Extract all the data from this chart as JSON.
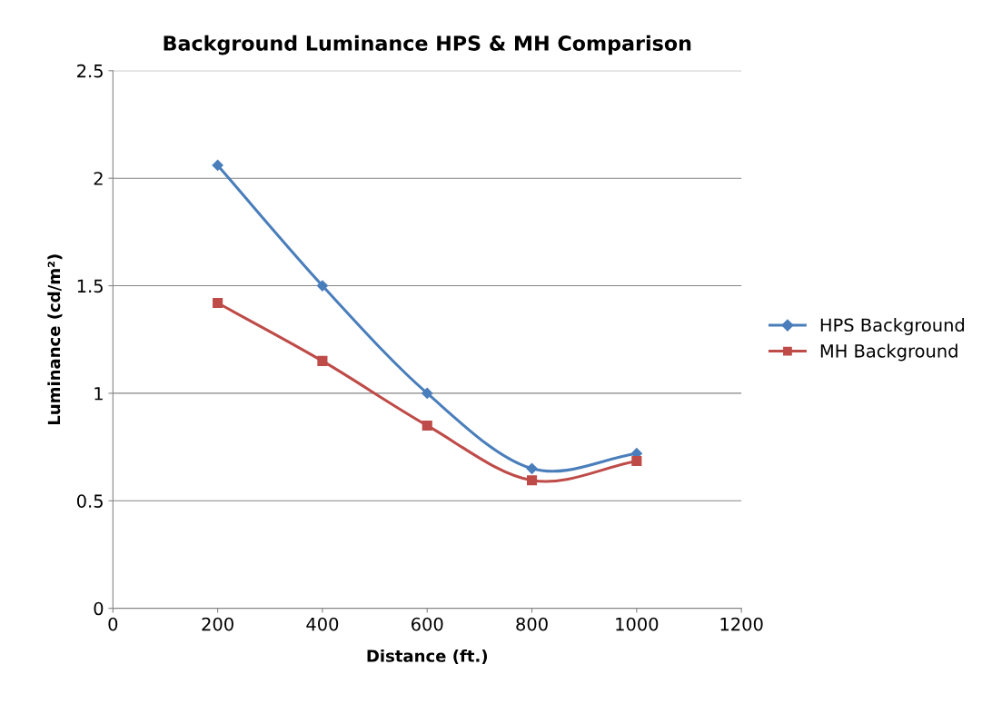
{
  "chart_data": {
    "type": "line",
    "title": "Background Luminance HPS & MH Comparison",
    "xlabel": "Distance (ft.)",
    "ylabel": "Luminance (cd/m²)",
    "x": [
      200,
      400,
      600,
      800,
      1000
    ],
    "series": [
      {
        "name": "HPS Background",
        "color": "#4a7ebb",
        "marker": "diamond",
        "values": [
          2.06,
          1.5,
          1.0,
          0.65,
          0.72
        ]
      },
      {
        "name": "MH Background",
        "color": "#be4b48",
        "marker": "square",
        "values": [
          1.42,
          1.15,
          0.85,
          0.595,
          0.685
        ]
      }
    ],
    "xlim": [
      0,
      1200
    ],
    "xticks": [
      0,
      200,
      400,
      600,
      800,
      1000,
      1200
    ],
    "ylim": [
      0,
      2.5
    ],
    "yticks": [
      0,
      0.5,
      1,
      1.5,
      2,
      2.5
    ],
    "grid": "y",
    "legend": "right",
    "line_style": "solid"
  }
}
